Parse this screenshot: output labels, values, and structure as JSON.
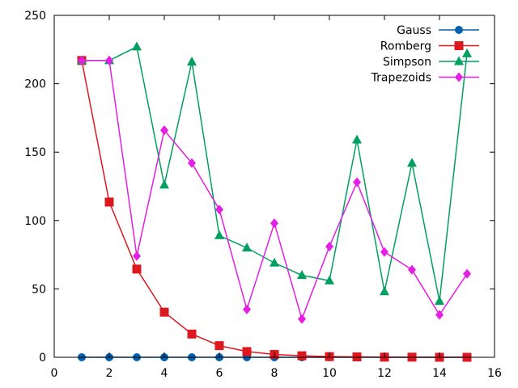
{
  "chart_data": {
    "type": "line",
    "title": "",
    "xlabel": "",
    "ylabel": "",
    "xlim": [
      0,
      16
    ],
    "ylim": [
      0,
      250
    ],
    "xticks": [
      0,
      2,
      4,
      6,
      8,
      10,
      12,
      14,
      16
    ],
    "yticks": [
      0,
      50,
      100,
      150,
      200,
      250
    ],
    "grid": false,
    "legend_position": "top-right",
    "x": [
      1,
      2,
      3,
      4,
      5,
      6,
      7,
      8,
      9,
      10,
      11,
      12,
      13,
      14,
      15
    ],
    "series": [
      {
        "name": "Gauss",
        "color": "#0060ad",
        "marker": "circle",
        "values": [
          0,
          0,
          0,
          0,
          0,
          0,
          0,
          0,
          0,
          0,
          0,
          0,
          0,
          0,
          0
        ]
      },
      {
        "name": "Romberg",
        "color": "#dd181f",
        "marker": "square",
        "values": [
          217,
          113.5,
          64.5,
          33,
          17,
          8.5,
          4.2,
          2.1,
          1.1,
          0.5,
          0.3,
          0.1,
          0.1,
          0,
          0
        ]
      },
      {
        "name": "Simpson",
        "color": "#00a060",
        "marker": "triangle",
        "values": [
          217,
          217,
          227,
          126,
          216,
          89,
          80,
          69,
          60,
          56,
          159,
          48,
          142,
          41,
          222
        ]
      },
      {
        "name": "Trapezoids",
        "color": "#e51ee5",
        "marker": "diamond",
        "values": [
          217,
          217,
          74,
          166,
          142,
          108,
          35,
          98,
          28,
          81,
          128,
          77,
          64,
          31,
          61
        ]
      }
    ]
  }
}
